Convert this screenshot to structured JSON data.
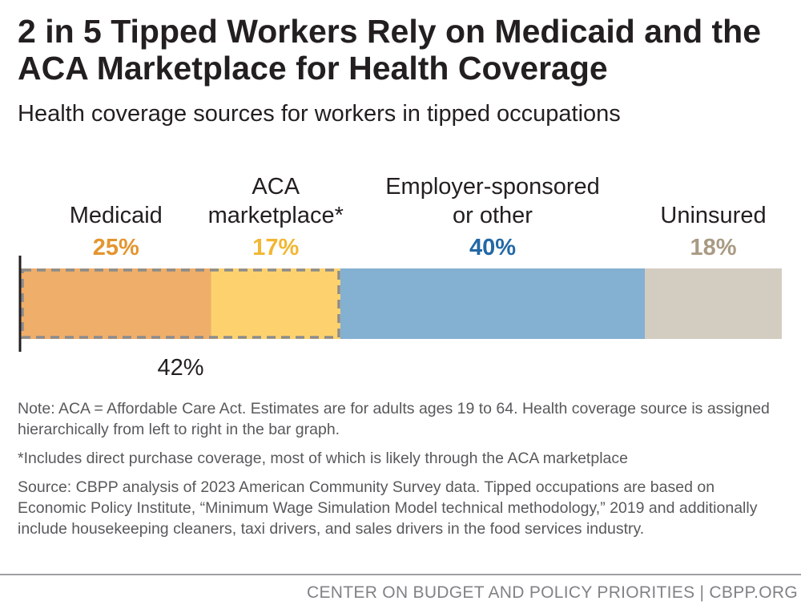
{
  "header": {
    "title": "2 in 5 Tipped Workers Rely on Medicaid and the ACA Marketplace for Health Coverage",
    "subtitle": "Health coverage sources for workers in tipped occupations"
  },
  "chart_data": {
    "type": "bar",
    "orientation": "horizontal-stacked",
    "title": "2 in 5 Tipped Workers Rely on Medicaid and the ACA Marketplace for Health Coverage",
    "subtitle": "Health coverage sources for workers in tipped occupations",
    "unit": "%",
    "segments": [
      {
        "name": "Medicaid",
        "label_lines": [
          "Medicaid"
        ],
        "value": 25,
        "display": "25%",
        "color": "#efae6a",
        "text_color": "#e4952f"
      },
      {
        "name": "ACA marketplace*",
        "label_lines": [
          "ACA",
          "marketplace*"
        ],
        "value": 17,
        "display": "17%",
        "color": "#fdd26e",
        "text_color": "#f2b632"
      },
      {
        "name": "Employer-sponsored or other",
        "label_lines": [
          "Employer-sponsored",
          "or other"
        ],
        "value": 40,
        "display": "40%",
        "color": "#84b0d2",
        "text_color": "#2368a6"
      },
      {
        "name": "Uninsured",
        "label_lines": [
          "Uninsured"
        ],
        "value": 18,
        "display": "18%",
        "color": "#d3ccc0",
        "text_color": "#a99a83"
      }
    ],
    "group_annotation": {
      "members": [
        "Medicaid",
        "ACA marketplace*"
      ],
      "value": 42,
      "display": "42%"
    }
  },
  "notes": {
    "note": "Note: ACA = Affordable Care Act. Estimates are for adults ages 19 to 64. Health coverage source is assigned hierarchically from left to right in the bar graph.",
    "footnote": "*Includes direct purchase coverage, most of which is likely through the ACA marketplace",
    "source": "Source: CBPP analysis of 2023 American Community Survey data. Tipped occupations are based on Economic Policy Institute, “Minimum Wage Simulation Model technical methodology,” 2019 and additionally include housekeeping cleaners, taxi drivers, and sales drivers in the food services industry."
  },
  "footer": {
    "text": "CENTER ON BUDGET AND POLICY PRIORITIES | CBPP.ORG"
  }
}
